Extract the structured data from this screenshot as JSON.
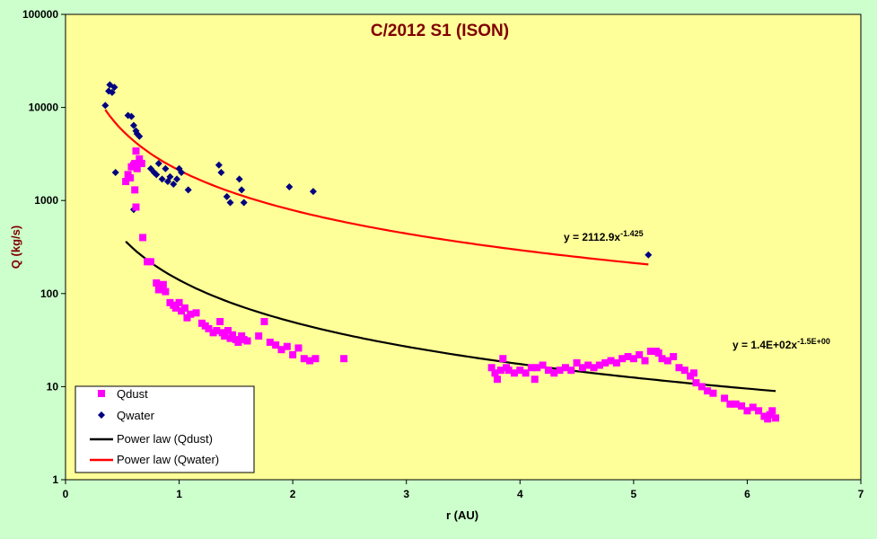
{
  "chart_data": {
    "type": "scatter",
    "title": "C/2012 S1 (ISON)",
    "xlabel": "r (AU)",
    "ylabel": "Q (kg/s)",
    "xlim": [
      0,
      7
    ],
    "ylim": [
      1,
      100000
    ],
    "y_scale": "log",
    "x_ticks": [
      "0",
      "1",
      "2",
      "3",
      "4",
      "5",
      "6",
      "7"
    ],
    "y_ticks": [
      "1",
      "10",
      "100",
      "1000",
      "10000",
      "100000"
    ],
    "grid": false,
    "legend_position": "bottom-left",
    "colors": {
      "plot_bg": "#ffff99",
      "page_bg": "#ccffcc",
      "title": "#800000",
      "ylabel": "#800000",
      "qdust": "#ff00ff",
      "qwater": "#000080",
      "fit_dust": "#000000",
      "fit_water": "#ff0000"
    },
    "legend": [
      {
        "label": "Qdust",
        "marker": "square",
        "color": "#ff00ff"
      },
      {
        "label": "Qwater",
        "marker": "diamond",
        "color": "#000080"
      },
      {
        "label": "Power law (Qdust)",
        "marker": "line",
        "color": "#000000"
      },
      {
        "label": "Power law (Qwater)",
        "marker": "line",
        "color": "#ff0000"
      }
    ],
    "series": [
      {
        "name": "Qdust",
        "marker": "square",
        "color": "#ff00ff",
        "points": [
          [
            0.53,
            1600
          ],
          [
            0.55,
            1900
          ],
          [
            0.57,
            1750
          ],
          [
            0.58,
            2300
          ],
          [
            0.6,
            2400
          ],
          [
            0.61,
            2500
          ],
          [
            0.62,
            3400
          ],
          [
            0.63,
            2200
          ],
          [
            0.61,
            1300
          ],
          [
            0.62,
            850
          ],
          [
            0.65,
            2800
          ],
          [
            0.67,
            2500
          ],
          [
            0.68,
            400
          ],
          [
            0.72,
            220
          ],
          [
            0.75,
            220
          ],
          [
            0.8,
            130
          ],
          [
            0.82,
            110
          ],
          [
            0.84,
            120
          ],
          [
            0.86,
            125
          ],
          [
            0.88,
            105
          ],
          [
            0.92,
            80
          ],
          [
            0.95,
            75
          ],
          [
            0.97,
            70
          ],
          [
            1.0,
            80
          ],
          [
            1.02,
            65
          ],
          [
            1.05,
            70
          ],
          [
            1.07,
            55
          ],
          [
            1.1,
            60
          ],
          [
            1.15,
            62
          ],
          [
            1.2,
            48
          ],
          [
            1.23,
            45
          ],
          [
            1.26,
            42
          ],
          [
            1.3,
            38
          ],
          [
            1.33,
            40
          ],
          [
            1.36,
            50
          ],
          [
            1.38,
            38
          ],
          [
            1.4,
            35
          ],
          [
            1.43,
            40
          ],
          [
            1.45,
            33
          ],
          [
            1.47,
            36
          ],
          [
            1.5,
            32
          ],
          [
            1.52,
            30
          ],
          [
            1.55,
            35
          ],
          [
            1.57,
            32
          ],
          [
            1.6,
            31
          ],
          [
            1.7,
            35
          ],
          [
            1.75,
            50
          ],
          [
            1.8,
            30
          ],
          [
            1.85,
            28
          ],
          [
            1.9,
            25
          ],
          [
            1.95,
            27
          ],
          [
            2.0,
            22
          ],
          [
            2.05,
            26
          ],
          [
            2.1,
            20
          ],
          [
            2.15,
            19
          ],
          [
            2.2,
            20
          ],
          [
            2.45,
            20
          ],
          [
            3.75,
            16
          ],
          [
            3.78,
            14
          ],
          [
            3.8,
            12
          ],
          [
            3.83,
            15
          ],
          [
            3.85,
            20
          ],
          [
            3.88,
            16
          ],
          [
            3.9,
            15
          ],
          [
            3.95,
            14
          ],
          [
            4.0,
            15
          ],
          [
            4.05,
            14
          ],
          [
            4.1,
            16
          ],
          [
            4.13,
            12
          ],
          [
            4.15,
            16
          ],
          [
            4.2,
            17
          ],
          [
            4.25,
            15
          ],
          [
            4.3,
            14
          ],
          [
            4.35,
            15
          ],
          [
            4.4,
            16
          ],
          [
            4.45,
            15
          ],
          [
            4.5,
            18
          ],
          [
            4.55,
            16
          ],
          [
            4.6,
            17
          ],
          [
            4.65,
            16
          ],
          [
            4.7,
            17
          ],
          [
            4.75,
            18
          ],
          [
            4.8,
            19
          ],
          [
            4.85,
            18
          ],
          [
            4.9,
            20
          ],
          [
            4.95,
            21
          ],
          [
            5.0,
            20
          ],
          [
            5.05,
            22
          ],
          [
            5.1,
            19
          ],
          [
            5.15,
            24
          ],
          [
            5.18,
            24
          ],
          [
            5.2,
            24
          ],
          [
            5.22,
            23
          ],
          [
            5.25,
            20
          ],
          [
            5.3,
            19
          ],
          [
            5.35,
            21
          ],
          [
            5.4,
            16
          ],
          [
            5.45,
            15
          ],
          [
            5.5,
            13
          ],
          [
            5.53,
            14
          ],
          [
            5.55,
            11
          ],
          [
            5.6,
            10
          ],
          [
            5.65,
            9
          ],
          [
            5.7,
            8.5
          ],
          [
            5.8,
            7.5
          ],
          [
            5.85,
            6.5
          ],
          [
            5.9,
            6.5
          ],
          [
            5.95,
            6.2
          ],
          [
            6.0,
            5.5
          ],
          [
            6.05,
            6
          ],
          [
            6.1,
            5.5
          ],
          [
            6.15,
            4.8
          ],
          [
            6.18,
            4.5
          ],
          [
            6.2,
            5
          ],
          [
            6.22,
            5.5
          ],
          [
            6.25,
            4.6
          ]
        ]
      },
      {
        "name": "Qwater",
        "marker": "diamond",
        "color": "#000080",
        "points": [
          [
            0.35,
            10500
          ],
          [
            0.38,
            15000
          ],
          [
            0.39,
            17500
          ],
          [
            0.41,
            14500
          ],
          [
            0.43,
            16500
          ],
          [
            0.44,
            2000
          ],
          [
            0.55,
            8200
          ],
          [
            0.58,
            8000
          ],
          [
            0.6,
            6400
          ],
          [
            0.62,
            5600
          ],
          [
            0.63,
            5200
          ],
          [
            0.65,
            4900
          ],
          [
            0.6,
            800
          ],
          [
            0.75,
            2200
          ],
          [
            0.78,
            2000
          ],
          [
            0.8,
            1900
          ],
          [
            0.82,
            2500
          ],
          [
            0.85,
            1700
          ],
          [
            0.88,
            2200
          ],
          [
            0.9,
            1600
          ],
          [
            0.92,
            1800
          ],
          [
            0.95,
            1500
          ],
          [
            0.98,
            1700
          ],
          [
            1.0,
            2200
          ],
          [
            1.02,
            2000
          ],
          [
            1.08,
            1300
          ],
          [
            1.35,
            2400
          ],
          [
            1.37,
            2000
          ],
          [
            1.42,
            1100
          ],
          [
            1.45,
            950
          ],
          [
            1.53,
            1700
          ],
          [
            1.55,
            1300
          ],
          [
            1.57,
            950
          ],
          [
            1.97,
            1400
          ],
          [
            2.18,
            1250
          ],
          [
            5.13,
            260
          ]
        ]
      },
      {
        "name": "Power law (Qdust)",
        "marker": "line",
        "color": "#000000",
        "fit": {
          "coefficient": 140,
          "exponent": -1.5,
          "x_range": [
            0.53,
            6.25
          ]
        },
        "equation_label": {
          "base": "y = 1.4E+02x",
          "exponent": "-1.5E+00"
        }
      },
      {
        "name": "Power law (Qwater)",
        "marker": "line",
        "color": "#ff0000",
        "fit": {
          "coefficient": 2112.9,
          "exponent": -1.425,
          "x_range": [
            0.35,
            5.13
          ]
        },
        "equation_label": {
          "base": "y = 2112.9x",
          "exponent": "-1.425"
        }
      }
    ]
  }
}
